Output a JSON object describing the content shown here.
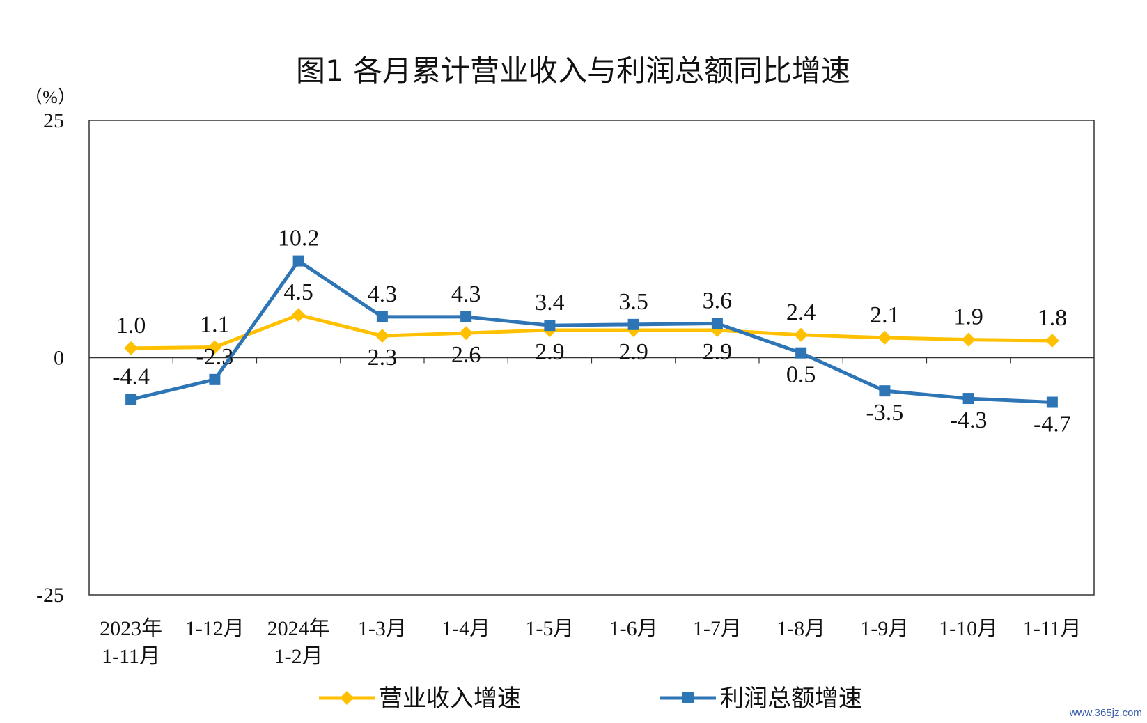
{
  "chart_data": {
    "type": "line",
    "title": "图1  各月累计营业收入与利润总额同比增速",
    "unit": "（%）",
    "ylim": [
      -25,
      25
    ],
    "yticks": [
      25,
      0,
      -25
    ],
    "categories": [
      [
        "2023年",
        "1-11月"
      ],
      [
        "1-12月"
      ],
      [
        "2024年",
        "1-2月"
      ],
      [
        "1-3月"
      ],
      [
        "1-4月"
      ],
      [
        "1-5月"
      ],
      [
        "1-6月"
      ],
      [
        "1-7月"
      ],
      [
        "1-8月"
      ],
      [
        "1-9月"
      ],
      [
        "1-10月"
      ],
      [
        "1-11月"
      ]
    ],
    "series": [
      {
        "name": "营业收入增速",
        "color": "#FFC000",
        "marker": "diamond",
        "values": [
          1.0,
          1.1,
          4.5,
          2.3,
          2.6,
          2.9,
          2.9,
          2.9,
          2.4,
          2.1,
          1.9,
          1.8
        ],
        "labels": [
          "1.0",
          "1.1",
          "4.5",
          "2.3",
          "2.6",
          "2.9",
          "2.9",
          "2.9",
          "2.4",
          "2.1",
          "1.9",
          "1.8"
        ],
        "label_side": [
          "above",
          "above",
          "above",
          "below",
          "below",
          "below",
          "below",
          "below",
          "above",
          "above",
          "above",
          "above"
        ]
      },
      {
        "name": "利润总额增速",
        "color": "#2E75B6",
        "marker": "square",
        "values": [
          -4.4,
          -2.3,
          10.2,
          4.3,
          4.3,
          3.4,
          3.5,
          3.6,
          0.5,
          -3.5,
          -4.3,
          -4.7
        ],
        "labels": [
          "-4.4",
          "-2.3",
          "10.2",
          "4.3",
          "4.3",
          "3.4",
          "3.5",
          "3.6",
          "0.5",
          "-3.5",
          "-4.3",
          "-4.7"
        ],
        "label_side": [
          "above",
          "above",
          "above",
          "above",
          "above",
          "above",
          "above",
          "above",
          "below",
          "below",
          "below",
          "below"
        ]
      }
    ],
    "legend_position": "bottom",
    "grid": false
  },
  "watermark": "www.365jz.com"
}
